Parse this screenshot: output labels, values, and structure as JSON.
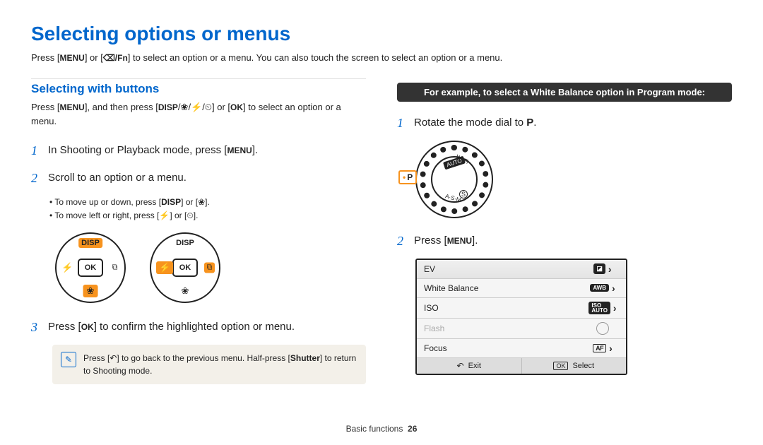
{
  "colors": {
    "accent_blue": "#0066cc",
    "highlight_orange": "#f7931e",
    "banner_bg": "#333333",
    "note_bg": "#f3f0e9",
    "text": "#222222"
  },
  "title": "Selecting options or menus",
  "intro_pre": "Press [",
  "intro_menu": "MENU",
  "intro_mid": "] or [",
  "intro_fn": "⌫/Fn",
  "intro_post": "] to select an option or a menu. You can also touch the screen to select an option or a menu.",
  "left": {
    "heading": "Selecting with buttons",
    "sub_pre": "Press [",
    "sub_menu": "MENU",
    "sub_mid": "], and then press [",
    "sub_disp": "DISP",
    "sub_sep1": "/",
    "sub_flower": "❀",
    "sub_sep2": "/",
    "sub_flash": "⚡",
    "sub_sep3": "/",
    "sub_timer": "⏲",
    "sub_mid2": "] or [",
    "sub_ok": "OK",
    "sub_end": "] to select an option or a menu.",
    "step1_num": "1",
    "step1_pre": "In Shooting or Playback mode, press [",
    "step1_menu": "MENU",
    "step1_post": "].",
    "step2_num": "2",
    "step2_text": "Scroll to an option or a menu.",
    "bullet1_pre": "To move up or down, press [",
    "bullet1_disp": "DISP",
    "bullet1_mid": "] or [",
    "bullet1_flower": "❀",
    "bullet1_post": "].",
    "bullet2_pre": "To move left or right, press [",
    "bullet2_flash": "⚡",
    "bullet2_mid": "] or [",
    "bullet2_timer": "⏲",
    "bullet2_post": "].",
    "dial_disp": "DISP",
    "dial_ok": "OK",
    "dial_left": "⚡",
    "dial_right": "⧉",
    "dial_bottom": "❀",
    "step3_num": "3",
    "step3_pre": "Press [",
    "step3_ok": "OK",
    "step3_post": "] to confirm the highlighted option or menu.",
    "note_icon": "✎",
    "note_pre": "Press [",
    "note_back": "↶",
    "note_mid": "] to go back to the previous menu. Half-press [",
    "note_shutter": "Shutter",
    "note_post": "] to return to Shooting mode."
  },
  "right": {
    "example_banner": "For example, to select a White Balance option in Program mode:",
    "step1_num": "1",
    "step1_pre": "Rotate the mode dial to ",
    "step1_p": "P",
    "step1_post": ".",
    "mode_p": "P",
    "mode_auto": "AUTO",
    "mode_wifi": "Wi-Fi",
    "mode_asm": "A·S·M",
    "mode_s": "S",
    "step2_num": "2",
    "step2_pre": "Press [",
    "step2_menu": "MENU",
    "step2_post": "].",
    "menu": {
      "rows": [
        {
          "label": "EV",
          "icon": "◪",
          "has_chev": true,
          "selected": true,
          "disabled": false
        },
        {
          "label": "White Balance",
          "icon": "AWB",
          "has_chev": true,
          "selected": false,
          "disabled": false
        },
        {
          "label": "ISO",
          "icon": "ISO\nAUTO",
          "has_chev": true,
          "selected": false,
          "disabled": false
        },
        {
          "label": "Flash",
          "icon": "globe",
          "has_chev": false,
          "selected": false,
          "disabled": true
        },
        {
          "label": "Focus",
          "icon": "[AF]",
          "has_chev": true,
          "selected": false,
          "disabled": false
        }
      ],
      "footer_exit": "Exit",
      "footer_back_icon": "↶",
      "footer_select": "Select",
      "footer_ok": "OK"
    }
  },
  "footer_section": "Basic functions",
  "footer_page": "26"
}
